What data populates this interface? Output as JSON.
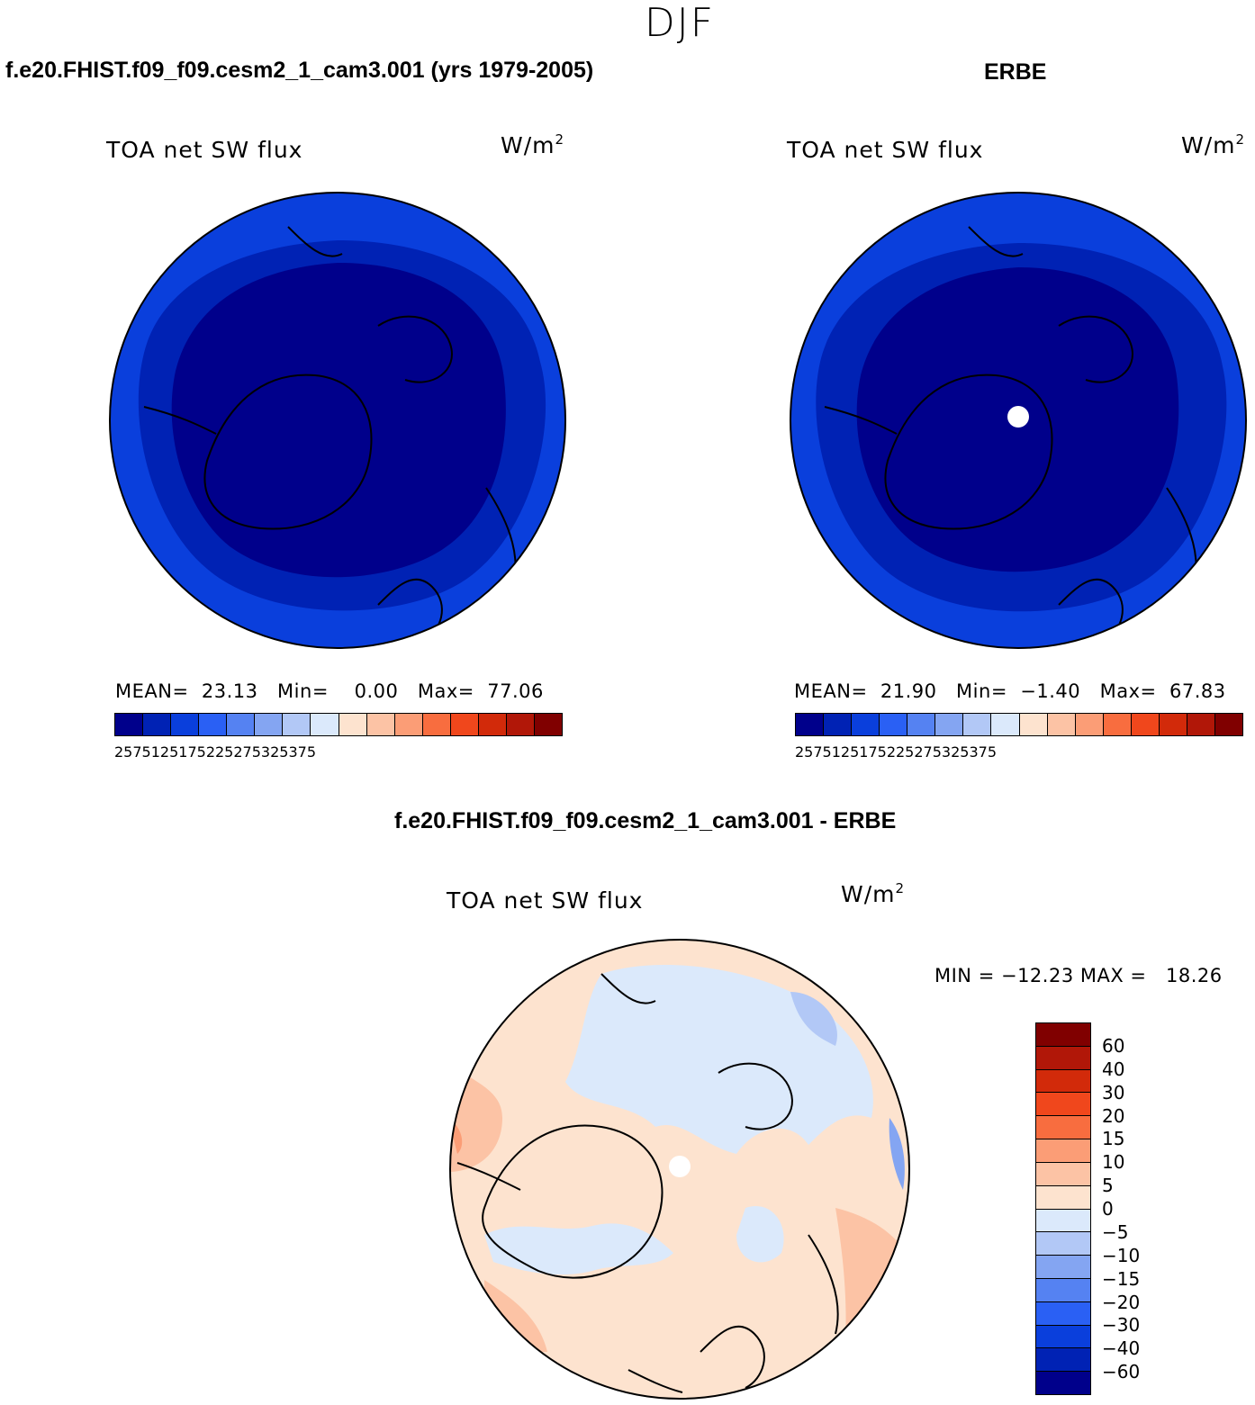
{
  "season": "DJF",
  "panels": [
    {
      "case_title": "f.e20.FHIST.f09_f09.cesm2_1_cam3.001 (yrs 1979-2005)",
      "plot_title": "TOA net SW flux",
      "units_base": "W/m",
      "units_exp": "2",
      "stats": "MEAN=  23.13   Min=    0.00   Max=  77.06"
    },
    {
      "case_title": "ERBE",
      "plot_title": "TOA net SW flux",
      "units_base": "W/m",
      "units_exp": "2",
      "stats": "MEAN=  21.90   Min=  −1.40   Max=  67.83"
    }
  ],
  "difference": {
    "case_title": "f.e20.FHIST.f09_f09.cesm2_1_cam3.001 - ERBE",
    "plot_title": "TOA net SW flux",
    "units_base": "W/m",
    "units_exp": "2",
    "minmax": "MIN = −12.23 MAX =   18.26"
  },
  "field_colorbar": {
    "colors": [
      "#00008b",
      "#0022b4",
      "#0a3fdc",
      "#2a60f4",
      "#5582f2",
      "#84a5f2",
      "#b2c8f6",
      "#dbe9fb",
      "#fde3cf",
      "#fcc3a5",
      "#fb9d76",
      "#f86d3f",
      "#f0471c",
      "#d22a0a",
      "#b11708",
      "#800000"
    ],
    "tick_labels": [
      "25",
      "75",
      "125",
      "175",
      "225",
      "275",
      "325",
      "375"
    ]
  },
  "diff_colorbar": {
    "colors_top_to_bottom": [
      "#800000",
      "#b11708",
      "#d22a0a",
      "#f0471c",
      "#f86d3f",
      "#fb9d76",
      "#fcc3a5",
      "#fde3cf",
      "#dbe9fb",
      "#b2c8f6",
      "#84a5f2",
      "#5582f2",
      "#2a60f4",
      "#0a3fdc",
      "#0022b4",
      "#00008b"
    ],
    "tick_labels_top_to_bottom": [
      "60",
      "40",
      "30",
      "20",
      "15",
      "10",
      "5",
      "0",
      "−5",
      "−10",
      "−15",
      "−20",
      "−30",
      "−40",
      "−60"
    ]
  }
}
